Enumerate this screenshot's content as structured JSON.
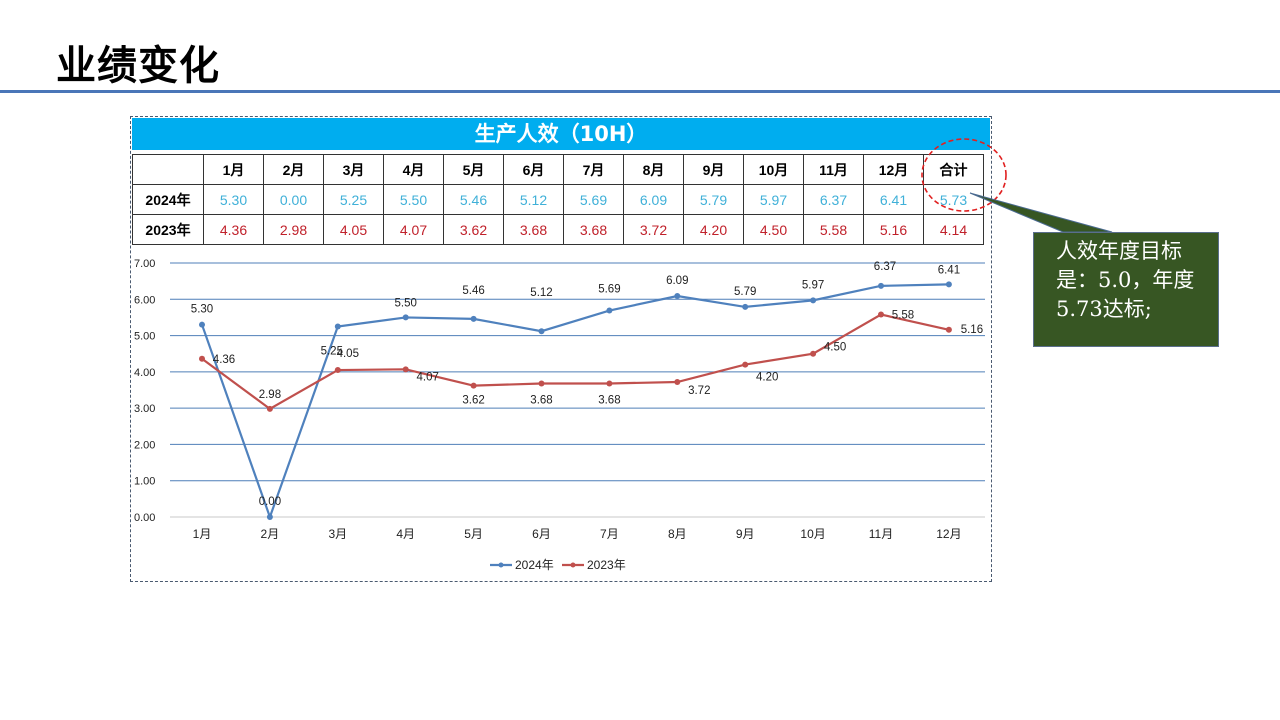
{
  "page": {
    "title": "业绩变化"
  },
  "table": {
    "banner": "生产人效（10H）",
    "header": [
      "",
      "1月",
      "2月",
      "3月",
      "4月",
      "5月",
      "6月",
      "7月",
      "8月",
      "9月",
      "10月",
      "11月",
      "12月",
      "合计"
    ],
    "rows": [
      {
        "label": "2024年",
        "values": [
          "5.30",
          "0.00",
          "5.25",
          "5.50",
          "5.46",
          "5.12",
          "5.69",
          "6.09",
          "5.79",
          "5.97",
          "6.37",
          "6.41",
          "5.73"
        ],
        "color": "#3fb0d8"
      },
      {
        "label": "2023年",
        "values": [
          "4.36",
          "2.98",
          "4.05",
          "4.07",
          "3.62",
          "3.68",
          "3.68",
          "3.72",
          "4.20",
          "4.50",
          "5.58",
          "5.16",
          "4.14"
        ],
        "color": "#c0202a"
      }
    ]
  },
  "callout": {
    "text": "人效年度目标是：5.0，年度5.73达标;"
  },
  "chart_data": {
    "type": "line",
    "title": "生产人效（10H）",
    "categories": [
      "1月",
      "2月",
      "3月",
      "4月",
      "5月",
      "6月",
      "7月",
      "8月",
      "9月",
      "10月",
      "11月",
      "12月"
    ],
    "series": [
      {
        "name": "2024年",
        "color": "#4f81bd",
        "values": [
          5.3,
          0.0,
          5.25,
          5.5,
          5.46,
          5.12,
          5.69,
          6.09,
          5.79,
          5.97,
          6.37,
          6.41
        ]
      },
      {
        "name": "2023年",
        "color": "#c0504d",
        "values": [
          4.36,
          2.98,
          4.05,
          4.07,
          3.62,
          3.68,
          3.68,
          3.72,
          4.2,
          4.5,
          5.58,
          5.16
        ]
      }
    ],
    "yticks": [
      "0.00",
      "1.00",
      "2.00",
      "3.00",
      "4.00",
      "5.00",
      "6.00",
      "7.00"
    ],
    "ylim": [
      0,
      7
    ],
    "xlabel": "",
    "ylabel": "",
    "grid": true,
    "legend_position": "bottom"
  }
}
